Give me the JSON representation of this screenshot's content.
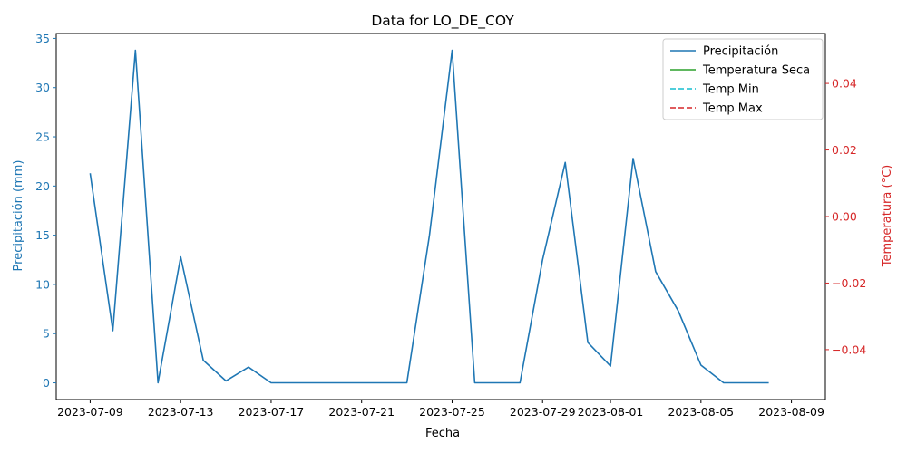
{
  "chart_data": {
    "type": "line",
    "title": "Data for LO_DE_COY",
    "xlabel": "Fecha",
    "ylabel_left": "Precipitación (mm)",
    "ylabel_right": "Temperatura (°C)",
    "x_tick_labels": [
      "2023-07-09",
      "2023-07-13",
      "2023-07-17",
      "2023-07-21",
      "2023-07-25",
      "2023-07-29",
      "2023-08-01",
      "2023-08-05",
      "2023-08-09"
    ],
    "y_left_ticks": [
      "0",
      "5",
      "10",
      "15",
      "20",
      "25",
      "30",
      "35"
    ],
    "y_right_ticks": [
      "−0.04",
      "−0.02",
      "0.00",
      "0.02",
      "0.04"
    ],
    "ylim_left": [
      -1.7,
      35.5
    ],
    "ylim_right": [
      -0.055,
      0.055
    ],
    "legend_position": "top-right",
    "grid": false,
    "colors": {
      "precipitation": "#1f77b4",
      "temp_seca": "#2ca02c",
      "temp_min": "#17becf",
      "temp_max": "#d62728",
      "left_axis": "#1f77b4",
      "right_axis": "#d62728"
    },
    "series": [
      {
        "name": "Precipitación",
        "axis": "left",
        "style": "solid",
        "x": [
          "2023-07-09",
          "2023-07-10",
          "2023-07-11",
          "2023-07-12",
          "2023-07-13",
          "2023-07-14",
          "2023-07-15",
          "2023-07-16",
          "2023-07-17",
          "2023-07-18",
          "2023-07-19",
          "2023-07-20",
          "2023-07-21",
          "2023-07-22",
          "2023-07-23",
          "2023-07-24",
          "2023-07-25",
          "2023-07-26",
          "2023-07-27",
          "2023-07-28",
          "2023-07-29",
          "2023-07-30",
          "2023-07-31",
          "2023-08-01",
          "2023-08-02",
          "2023-08-03",
          "2023-08-04",
          "2023-08-05",
          "2023-08-06",
          "2023-08-07",
          "2023-08-08"
        ],
        "y": [
          21.3,
          5.3,
          33.8,
          0.0,
          12.8,
          2.3,
          0.2,
          1.6,
          0.0,
          0.0,
          0.0,
          0.0,
          0.0,
          0.0,
          0.0,
          15.0,
          33.8,
          0.0,
          0.0,
          0.0,
          12.5,
          22.4,
          4.1,
          1.7,
          22.8,
          11.3,
          7.3,
          1.8,
          0.0,
          0.0,
          0.0
        ]
      },
      {
        "name": "Temperatura Seca",
        "axis": "right",
        "style": "solid",
        "x": [],
        "y": []
      },
      {
        "name": "Temp Min",
        "axis": "right",
        "style": "dashed",
        "x": [],
        "y": []
      },
      {
        "name": "Temp Max",
        "axis": "right",
        "style": "dashed",
        "x": [],
        "y": []
      }
    ]
  }
}
